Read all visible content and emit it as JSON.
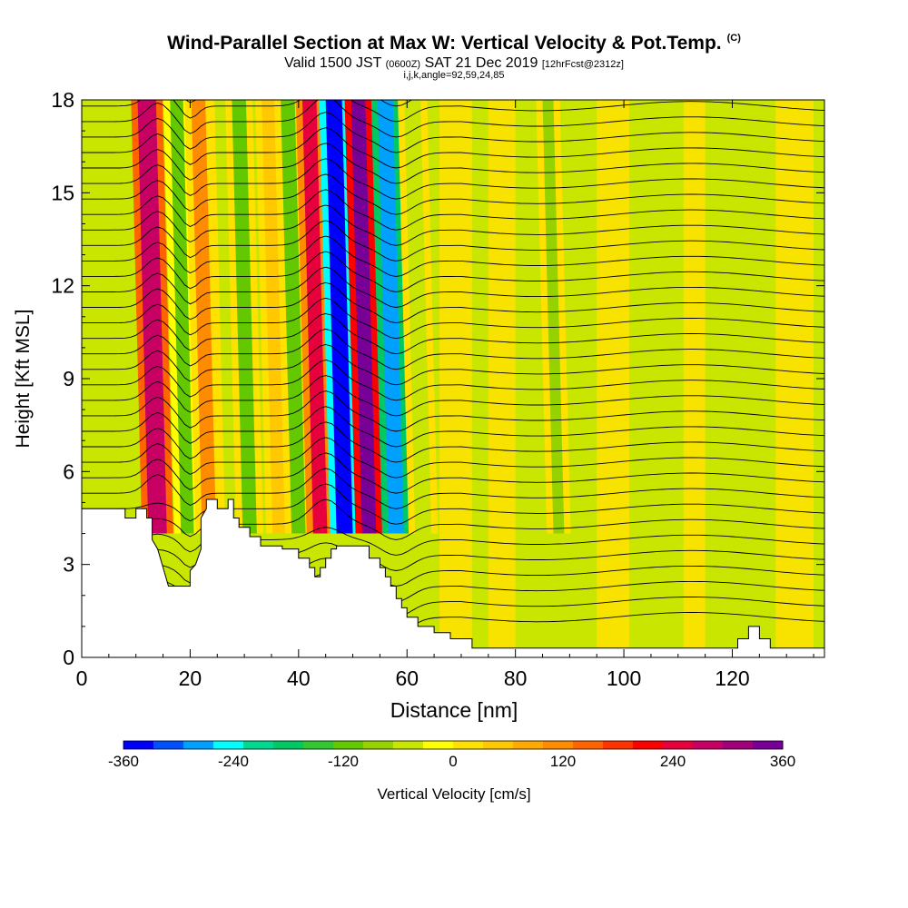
{
  "header": {
    "title": "Wind-Parallel Section at Max W: Vertical Velocity & Pot.Temp.",
    "copyright_mark": "(C)",
    "valid_prefix": "Valid 1500 JST",
    "utc_time": "(0600Z)",
    "valid_date": "SAT 21 Dec 2019",
    "forecast_tag": "[12hrFcst@2312z]",
    "indices": "i,j,k,angle=92,59,24,85"
  },
  "chart_data": {
    "type": "contour-section",
    "xlabel": "Distance [nm]",
    "ylabel": "Height [Kft MSL]",
    "xlim": [
      0,
      137
    ],
    "ylim": [
      0,
      18
    ],
    "x_ticks": [
      0,
      20,
      40,
      60,
      80,
      100,
      120
    ],
    "y_ticks": [
      0,
      3,
      6,
      9,
      12,
      15,
      18
    ],
    "colorbar": {
      "label": "Vertical Velocity [cm/s]",
      "range": [
        -360,
        360
      ],
      "tick_values": [
        -360,
        -240,
        -120,
        0,
        120,
        240,
        360
      ],
      "colors": [
        "#0000ff",
        "#0050ff",
        "#00a0ff",
        "#00ffff",
        "#00d890",
        "#00c864",
        "#32c832",
        "#64c800",
        "#96d200",
        "#c8e600",
        "#ffff00",
        "#ffe100",
        "#ffc800",
        "#ffaa00",
        "#ff8c00",
        "#ff6400",
        "#ff3200",
        "#ff0000",
        "#e6003c",
        "#c80064",
        "#a00078",
        "#780096"
      ]
    },
    "velocity_bands": [
      {
        "x": 14,
        "w": 3.4,
        "value": 270
      },
      {
        "x": 19.5,
        "w": 2.4,
        "value": -120
      },
      {
        "x": 23.5,
        "w": 2.6,
        "value": 130
      },
      {
        "x": 27.5,
        "w": 2.0,
        "value": -40
      },
      {
        "x": 31,
        "w": 2.6,
        "value": -110
      },
      {
        "x": 36.5,
        "w": 2.6,
        "value": 60
      },
      {
        "x": 40,
        "w": 2.6,
        "value": -110
      },
      {
        "x": 44,
        "w": 2.6,
        "value": 240
      },
      {
        "x": 48.5,
        "w": 3.0,
        "value": -360
      },
      {
        "x": 53,
        "w": 2.6,
        "value": 330
      },
      {
        "x": 58,
        "w": 2.8,
        "value": -290
      },
      {
        "x": 63,
        "w": 3.0,
        "value": -60
      },
      {
        "x": 88,
        "w": 2.0,
        "value": -80
      }
    ],
    "terrain": [
      [
        0,
        4.8
      ],
      [
        8,
        4.8
      ],
      [
        8,
        4.5
      ],
      [
        10,
        4.5
      ],
      [
        10,
        4.8
      ],
      [
        12,
        4.8
      ],
      [
        12,
        4.5
      ],
      [
        13,
        4.5
      ],
      [
        13,
        3.8
      ],
      [
        14,
        3.5
      ],
      [
        15,
        2.9
      ],
      [
        16,
        2.3
      ],
      [
        18,
        2.3
      ],
      [
        20,
        2.3
      ],
      [
        20,
        2.8
      ],
      [
        21,
        3.0
      ],
      [
        22,
        3.5
      ],
      [
        22,
        4.5
      ],
      [
        23,
        4.8
      ],
      [
        23,
        5.1
      ],
      [
        25,
        5.1
      ],
      [
        25,
        4.8
      ],
      [
        27,
        4.8
      ],
      [
        27,
        5.1
      ],
      [
        28,
        5.1
      ],
      [
        28,
        4.5
      ],
      [
        29,
        4.5
      ],
      [
        29,
        4.2
      ],
      [
        31,
        4.2
      ],
      [
        31,
        3.9
      ],
      [
        33,
        3.9
      ],
      [
        33,
        3.6
      ],
      [
        37,
        3.6
      ],
      [
        37,
        3.5
      ],
      [
        40,
        3.5
      ],
      [
        40,
        3.2
      ],
      [
        42,
        3.2
      ],
      [
        42,
        2.9
      ],
      [
        43,
        2.9
      ],
      [
        43,
        2.6
      ],
      [
        44,
        2.6
      ],
      [
        44,
        2.9
      ],
      [
        45,
        2.9
      ],
      [
        45,
        3.2
      ],
      [
        46,
        3.2
      ],
      [
        46,
        3.5
      ],
      [
        47,
        3.5
      ],
      [
        47,
        3.6
      ],
      [
        53,
        3.6
      ],
      [
        53,
        3.2
      ],
      [
        55,
        3.2
      ],
      [
        55,
        2.9
      ],
      [
        56,
        2.9
      ],
      [
        56,
        2.6
      ],
      [
        57,
        2.6
      ],
      [
        57,
        2.3
      ],
      [
        58,
        2.3
      ],
      [
        58,
        1.9
      ],
      [
        59,
        1.9
      ],
      [
        59,
        1.6
      ],
      [
        60,
        1.6
      ],
      [
        60,
        1.3
      ],
      [
        62,
        1.3
      ],
      [
        62,
        1.0
      ],
      [
        65,
        1.0
      ],
      [
        65,
        0.8
      ],
      [
        68,
        0.8
      ],
      [
        68,
        0.6
      ],
      [
        72,
        0.6
      ],
      [
        72,
        0.3
      ],
      [
        104,
        0.3
      ],
      [
        104,
        0.3
      ],
      [
        121,
        0.3
      ],
      [
        121,
        0.6
      ],
      [
        123,
        0.6
      ],
      [
        123,
        1.0
      ],
      [
        125,
        1.0
      ],
      [
        125,
        0.6
      ],
      [
        127,
        0.6
      ],
      [
        127,
        0.3
      ],
      [
        137,
        0.3
      ],
      [
        137,
        0
      ]
    ]
  }
}
